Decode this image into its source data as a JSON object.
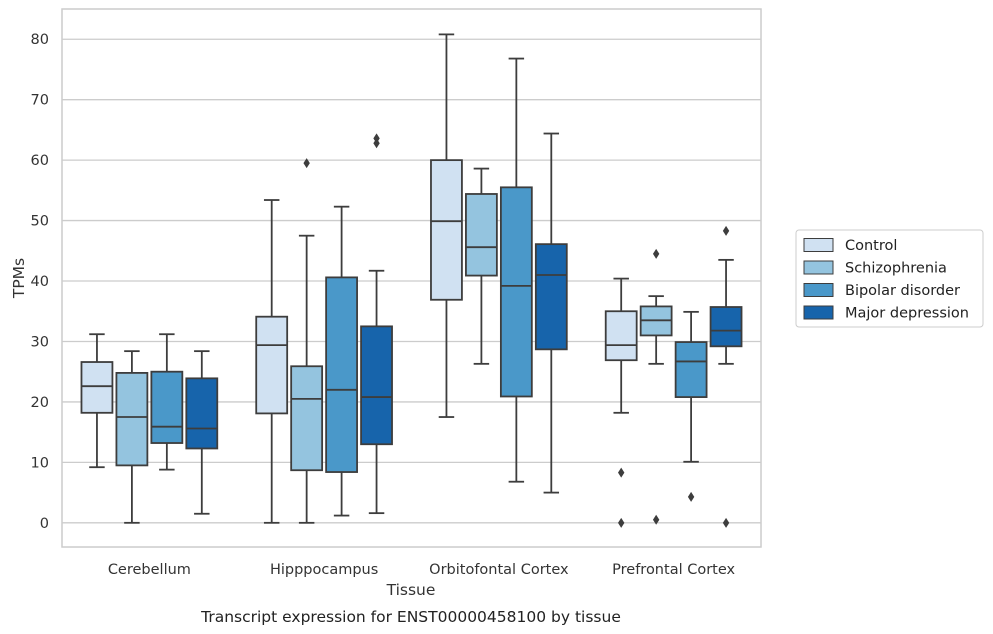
{
  "chart_data": {
    "type": "box",
    "xlabel": "Tissue",
    "ylabel": "TPMs",
    "caption": "Transcript expression for ENST00000458100 by tissue",
    "ylim": [
      -4,
      85
    ],
    "yticks": [
      0,
      10,
      20,
      30,
      40,
      50,
      60,
      70,
      80
    ],
    "grid": true,
    "legend_position": "right",
    "categories": [
      "Cerebellum",
      "Hipppocampus",
      "Orbitofontal Cortex",
      "Prefrontal Cortex"
    ],
    "series": [
      {
        "name": "Control",
        "color": "#d0e1f2",
        "boxes": [
          {
            "whislo": 9.2,
            "q1": 18.2,
            "med": 22.6,
            "q3": 26.6,
            "whishi": 31.2,
            "fliers": []
          },
          {
            "whislo": 0,
            "q1": 18.1,
            "med": 29.4,
            "q3": 34.1,
            "whishi": 53.4,
            "fliers": []
          },
          {
            "whislo": 17.5,
            "q1": 36.9,
            "med": 49.9,
            "q3": 60.0,
            "whishi": 80.8,
            "fliers": []
          },
          {
            "whislo": 18.2,
            "q1": 26.9,
            "med": 29.4,
            "q3": 35.0,
            "whishi": 40.4,
            "fliers": [
              8.3,
              0
            ]
          }
        ]
      },
      {
        "name": "Schizophrenia",
        "color": "#94c4df",
        "boxes": [
          {
            "whislo": 0,
            "q1": 9.5,
            "med": 17.5,
            "q3": 24.8,
            "whishi": 28.4,
            "fliers": []
          },
          {
            "whislo": 0,
            "q1": 8.7,
            "med": 20.5,
            "q3": 25.9,
            "whishi": 47.5,
            "fliers": [
              59.5
            ]
          },
          {
            "whislo": 26.3,
            "q1": 40.9,
            "med": 45.6,
            "q3": 54.4,
            "whishi": 58.6,
            "fliers": []
          },
          {
            "whislo": 26.3,
            "q1": 31.0,
            "med": 33.5,
            "q3": 35.8,
            "whishi": 37.5,
            "fliers": [
              44.5,
              0.5
            ]
          }
        ]
      },
      {
        "name": "Bipolar disorder",
        "color": "#4a98c9",
        "boxes": [
          {
            "whislo": 8.8,
            "q1": 13.2,
            "med": 15.9,
            "q3": 25.0,
            "whishi": 31.2,
            "fliers": []
          },
          {
            "whislo": 1.2,
            "q1": 8.4,
            "med": 22.0,
            "q3": 40.6,
            "whishi": 52.3,
            "fliers": []
          },
          {
            "whislo": 6.8,
            "q1": 20.9,
            "med": 39.2,
            "q3": 55.5,
            "whishi": 76.8,
            "fliers": []
          },
          {
            "whislo": 10.1,
            "q1": 20.8,
            "med": 26.7,
            "q3": 29.9,
            "whishi": 34.9,
            "fliers": [
              4.3
            ]
          }
        ]
      },
      {
        "name": "Major depression",
        "color": "#1764ab",
        "boxes": [
          {
            "whislo": 1.5,
            "q1": 12.3,
            "med": 15.6,
            "q3": 23.9,
            "whishi": 28.4,
            "fliers": []
          },
          {
            "whislo": 1.6,
            "q1": 13.0,
            "med": 20.8,
            "q3": 32.5,
            "whishi": 41.7,
            "fliers": [
              62.8,
              63.6
            ]
          },
          {
            "whislo": 5.0,
            "q1": 28.7,
            "med": 41.0,
            "q3": 46.1,
            "whishi": 64.4,
            "fliers": []
          },
          {
            "whislo": 26.3,
            "q1": 29.2,
            "med": 31.8,
            "q3": 35.7,
            "whishi": 43.5,
            "fliers": [
              48.3,
              0
            ]
          }
        ]
      }
    ]
  },
  "colors": {
    "grid": "#cccccc",
    "frame": "#cccccc",
    "lines": "#3d3d3d",
    "background": "#ffffff"
  }
}
